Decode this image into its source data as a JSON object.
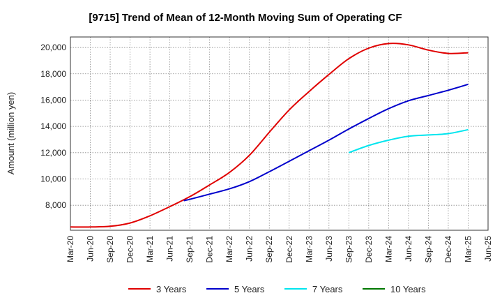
{
  "chart_data": {
    "type": "line",
    "title": "[9715]  Trend of Mean of 12-Month Moving Sum of Operating CF",
    "xlabel": "",
    "ylabel": "Amount (million yen)",
    "ylim": [
      6100,
      20800
    ],
    "yticks": [
      8000,
      10000,
      12000,
      14000,
      16000,
      18000,
      20000
    ],
    "ytick_labels": [
      "8,000",
      "10,000",
      "12,000",
      "14,000",
      "16,000",
      "18,000",
      "20,000"
    ],
    "xticks": [
      "Mar-20",
      "Jun-20",
      "Sep-20",
      "Dec-20",
      "Mar-21",
      "Jun-21",
      "Sep-21",
      "Dec-21",
      "Mar-22",
      "Jun-22",
      "Sep-22",
      "Dec-22",
      "Mar-23",
      "Jun-23",
      "Sep-23",
      "Dec-23",
      "Mar-24",
      "Jun-24",
      "Sep-24",
      "Dec-24",
      "Mar-25",
      "Jun-25"
    ],
    "grid": true,
    "legend_position": "bottom",
    "series": [
      {
        "name": "3 Years",
        "color": "#e00000",
        "points": [
          [
            0,
            6350
          ],
          [
            1,
            6350
          ],
          [
            2,
            6400
          ],
          [
            3,
            6650
          ],
          [
            4,
            7200
          ],
          [
            5,
            7900
          ],
          [
            6,
            8650
          ],
          [
            7,
            9550
          ],
          [
            8,
            10500
          ],
          [
            9,
            11800
          ],
          [
            10,
            13550
          ],
          [
            11,
            15250
          ],
          [
            12,
            16650
          ],
          [
            13,
            17950
          ],
          [
            14,
            19150
          ],
          [
            15,
            19950
          ],
          [
            16,
            20300
          ],
          [
            17,
            20200
          ],
          [
            18,
            19800
          ],
          [
            19,
            19550
          ],
          [
            20,
            19600
          ]
        ]
      },
      {
        "name": "5 Years",
        "color": "#0000cc",
        "points": [
          [
            5.7,
            8350
          ],
          [
            6,
            8450
          ],
          [
            7,
            8850
          ],
          [
            8,
            9250
          ],
          [
            9,
            9800
          ],
          [
            10,
            10550
          ],
          [
            11,
            11350
          ],
          [
            12,
            12150
          ],
          [
            13,
            12950
          ],
          [
            14,
            13800
          ],
          [
            15,
            14600
          ],
          [
            16,
            15350
          ],
          [
            17,
            15950
          ],
          [
            18,
            16350
          ],
          [
            19,
            16750
          ],
          [
            20,
            17200
          ]
        ]
      },
      {
        "name": "7 Years",
        "color": "#00e5ee",
        "points": [
          [
            14,
            12000
          ],
          [
            15,
            12550
          ],
          [
            16,
            12950
          ],
          [
            17,
            13250
          ],
          [
            18,
            13350
          ],
          [
            19,
            13450
          ],
          [
            20,
            13750
          ]
        ]
      },
      {
        "name": "10 Years",
        "color": "#007700",
        "points": []
      }
    ]
  }
}
